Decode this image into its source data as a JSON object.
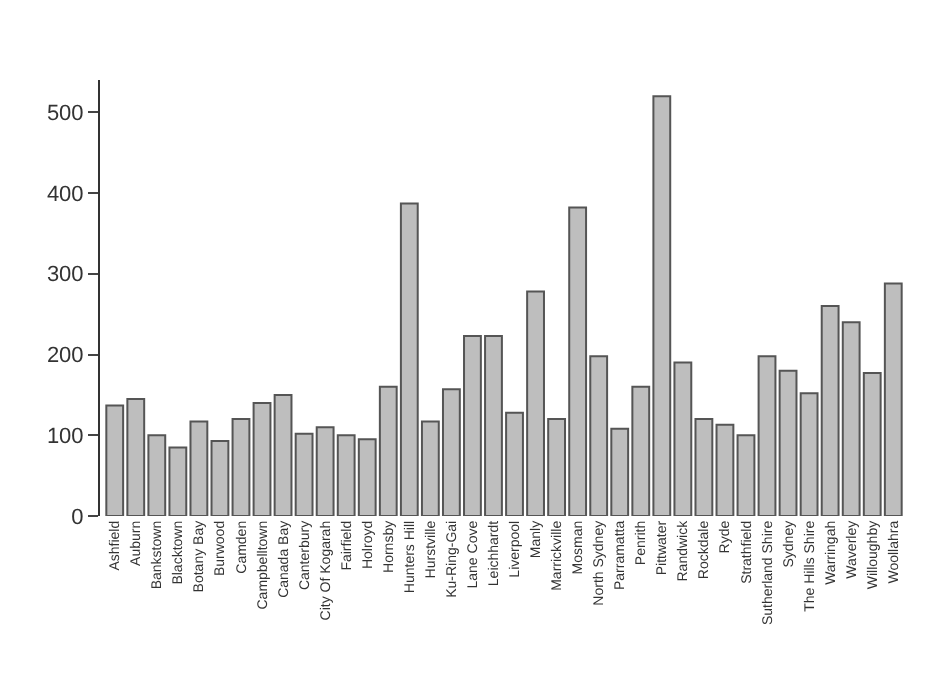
{
  "chart_data": {
    "type": "bar",
    "categories": [
      "Ashfield",
      "Auburn",
      "Bankstown",
      "Blacktown",
      "Botany Bay",
      "Burwood",
      "Camden",
      "Campbelltown",
      "Canada Bay",
      "Canterbury",
      "City Of Kogarah",
      "Fairfield",
      "Holroyd",
      "Hornsby",
      "Hunters Hill",
      "Hurstville",
      "Ku-Ring-Gai",
      "Lane Cove",
      "Leichhardt",
      "Liverpool",
      "Manly",
      "Marrickville",
      "Mosman",
      "North Sydney",
      "Parramatta",
      "Penrith",
      "Pittwater",
      "Randwick",
      "Rockdale",
      "Ryde",
      "Strathfield",
      "Sutherland Shire",
      "Sydney",
      "The Hills Shire",
      "Warringah",
      "Waverley",
      "Willoughby",
      "Woollahra"
    ],
    "values": [
      137,
      145,
      100,
      85,
      117,
      93,
      120,
      140,
      150,
      102,
      110,
      100,
      95,
      160,
      387,
      117,
      157,
      223,
      223,
      128,
      278,
      120,
      382,
      198,
      108,
      160,
      520,
      190,
      120,
      113,
      100,
      198,
      180,
      152,
      260,
      240,
      177,
      288
    ],
    "color": "#bebebe",
    "ylim": [
      0,
      540
    ],
    "yticks": [
      0,
      100,
      200,
      300,
      400,
      500
    ]
  }
}
